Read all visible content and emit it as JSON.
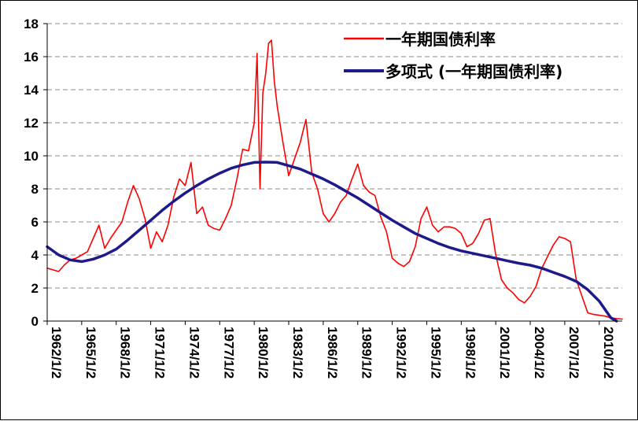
{
  "chart_data": {
    "type": "line",
    "title": "",
    "xlabel": "",
    "ylabel": "",
    "ylim": [
      0,
      18
    ],
    "yticks": [
      0,
      2,
      4,
      6,
      8,
      10,
      12,
      14,
      16,
      18
    ],
    "xlim": [
      "1962/1/2",
      "2012/1/2"
    ],
    "xticks": [
      "1962/1/2",
      "1965/1/2",
      "1968/1/2",
      "1971/1/2",
      "1974/1/2",
      "1977/1/2",
      "1980/1/2",
      "1983/1/2",
      "1986/1/2",
      "1989/1/2",
      "1992/1/2",
      "1995/1/2",
      "1998/1/2",
      "2001/1/2",
      "2004/1/2",
      "2007/1/2",
      "2010/1/2"
    ],
    "grid": "horizontal dashed",
    "legend_position": "top-right",
    "series": [
      {
        "name": "一年期国债利率",
        "color": "#ff0000",
        "style": "thin",
        "x": [
          1962.0,
          1962.5,
          1963.0,
          1963.5,
          1964.0,
          1964.5,
          1965.0,
          1965.5,
          1966.0,
          1966.5,
          1967.0,
          1967.5,
          1968.0,
          1968.5,
          1969.0,
          1969.5,
          1970.0,
          1970.5,
          1971.0,
          1971.5,
          1972.0,
          1972.5,
          1973.0,
          1973.5,
          1974.0,
          1974.5,
          1975.0,
          1975.5,
          1976.0,
          1976.5,
          1977.0,
          1977.5,
          1978.0,
          1978.5,
          1979.0,
          1979.5,
          1980.0,
          1980.25,
          1980.5,
          1980.75,
          1981.0,
          1981.25,
          1981.5,
          1981.75,
          1982.0,
          1982.5,
          1983.0,
          1983.5,
          1984.0,
          1984.5,
          1985.0,
          1985.5,
          1986.0,
          1986.5,
          1987.0,
          1987.5,
          1988.0,
          1988.5,
          1989.0,
          1989.5,
          1990.0,
          1990.5,
          1991.0,
          1991.5,
          1992.0,
          1992.5,
          1993.0,
          1993.5,
          1994.0,
          1994.5,
          1995.0,
          1995.5,
          1996.0,
          1996.5,
          1997.0,
          1997.5,
          1998.0,
          1998.5,
          1999.0,
          1999.5,
          2000.0,
          2000.5,
          2001.0,
          2001.5,
          2002.0,
          2002.5,
          2003.0,
          2003.5,
          2004.0,
          2004.5,
          2005.0,
          2005.5,
          2006.0,
          2006.5,
          2007.0,
          2007.5,
          2008.0,
          2008.5,
          2009.0,
          2009.5,
          2010.0,
          2010.5,
          2011.0,
          2011.5,
          2012.0
        ],
        "values": [
          3.2,
          3.1,
          3.0,
          3.4,
          3.7,
          3.8,
          4.0,
          4.2,
          5.0,
          5.8,
          4.4,
          5.0,
          5.5,
          6.0,
          7.2,
          8.2,
          7.4,
          6.2,
          4.4,
          5.4,
          4.8,
          5.8,
          7.5,
          8.6,
          8.2,
          9.6,
          6.5,
          6.9,
          5.8,
          5.6,
          5.5,
          6.2,
          7.0,
          8.6,
          10.4,
          10.3,
          12.0,
          16.2,
          8.0,
          13.8,
          15.0,
          16.8,
          17.0,
          14.5,
          13.0,
          10.8,
          8.8,
          9.8,
          10.8,
          12.2,
          9.0,
          8.0,
          6.5,
          6.0,
          6.5,
          7.2,
          7.6,
          8.6,
          9.5,
          8.2,
          7.8,
          7.6,
          6.3,
          5.4,
          3.8,
          3.5,
          3.3,
          3.6,
          4.5,
          6.2,
          6.9,
          5.8,
          5.4,
          5.7,
          5.7,
          5.6,
          5.3,
          4.5,
          4.7,
          5.3,
          6.1,
          6.2,
          4.0,
          2.5,
          2.0,
          1.7,
          1.3,
          1.1,
          1.5,
          2.1,
          3.2,
          3.9,
          4.6,
          5.1,
          5.0,
          4.8,
          2.5,
          1.5,
          0.5,
          0.4,
          0.35,
          0.3,
          0.2,
          0.15,
          0.12
        ]
      },
      {
        "name": "多项式 (一年期国债利率)",
        "color": "#1f1a8c",
        "style": "thick",
        "x": [
          1962.0,
          1963.0,
          1964.0,
          1965.0,
          1966.0,
          1967.0,
          1968.0,
          1969.0,
          1970.0,
          1971.0,
          1972.0,
          1973.0,
          1974.0,
          1975.0,
          1976.0,
          1977.0,
          1978.0,
          1979.0,
          1980.0,
          1981.0,
          1982.0,
          1983.0,
          1984.0,
          1985.0,
          1986.0,
          1987.0,
          1988.0,
          1989.0,
          1990.0,
          1991.0,
          1992.0,
          1993.0,
          1994.0,
          1995.0,
          1996.0,
          1997.0,
          1998.0,
          1999.0,
          2000.0,
          2001.0,
          2002.0,
          2003.0,
          2004.0,
          2005.0,
          2006.0,
          2007.0,
          2008.0,
          2009.0,
          2010.0,
          2011.0,
          2011.5
        ],
        "values": [
          4.5,
          4.0,
          3.7,
          3.6,
          3.75,
          4.0,
          4.35,
          4.9,
          5.5,
          6.1,
          6.7,
          7.25,
          7.75,
          8.2,
          8.6,
          8.95,
          9.25,
          9.45,
          9.6,
          9.62,
          9.6,
          9.4,
          9.2,
          8.9,
          8.6,
          8.25,
          7.85,
          7.45,
          7.0,
          6.55,
          6.1,
          5.7,
          5.3,
          5.0,
          4.7,
          4.45,
          4.25,
          4.1,
          3.95,
          3.8,
          3.65,
          3.5,
          3.38,
          3.2,
          2.95,
          2.7,
          2.4,
          1.9,
          1.2,
          0.2,
          0.0
        ]
      }
    ]
  }
}
